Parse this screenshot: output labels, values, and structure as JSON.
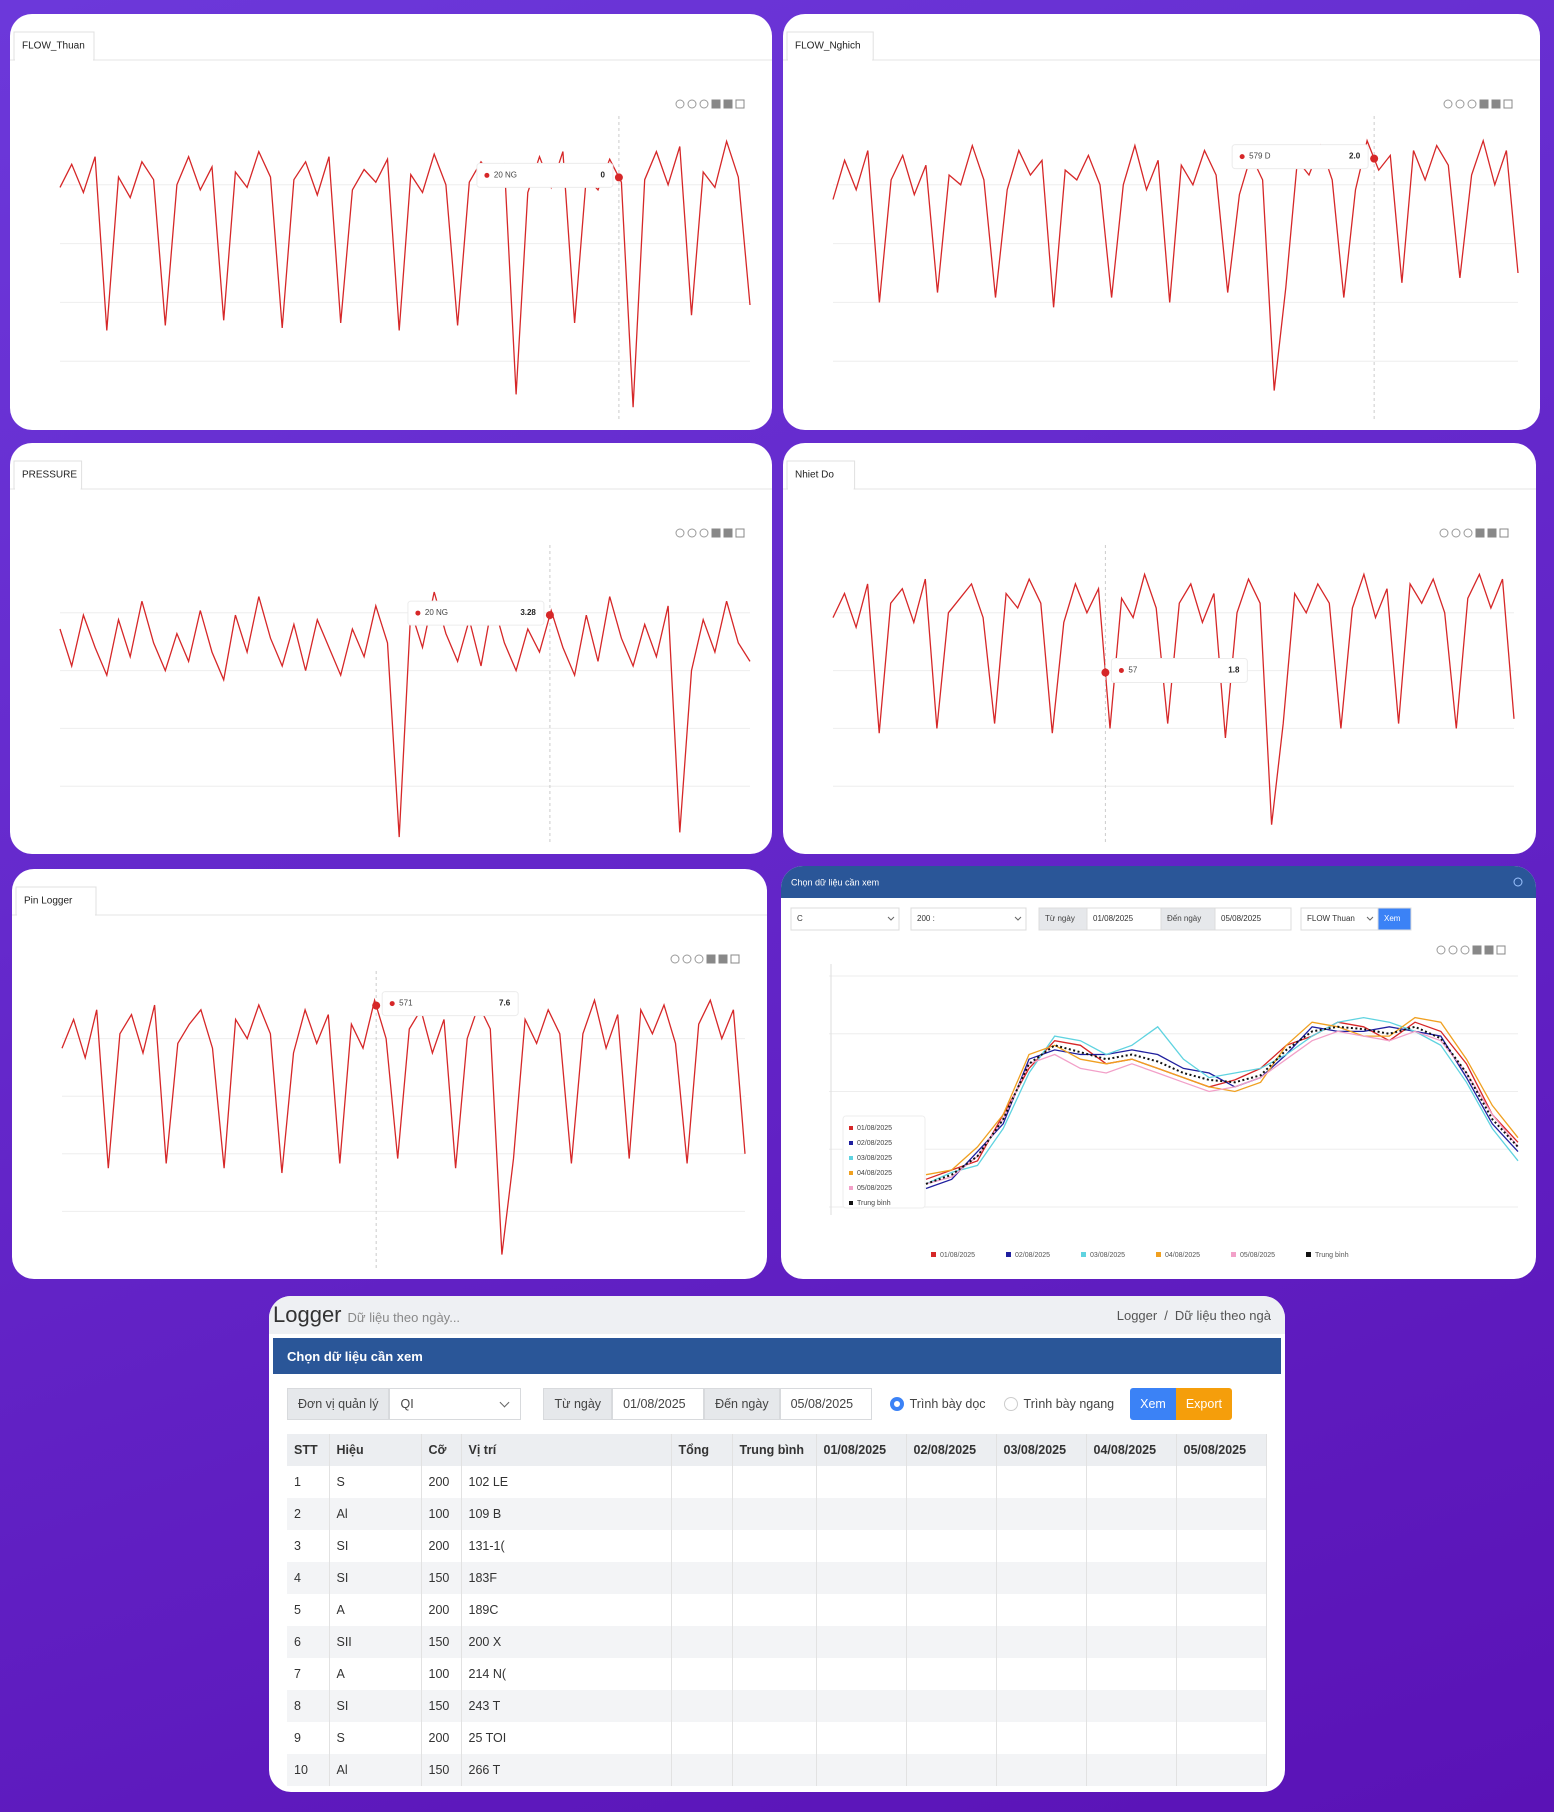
{
  "chart_data": [
    {
      "type": "line",
      "title": "FLOW_Thuan",
      "color": "#d62728",
      "ylim": [
        -15,
        100
      ],
      "tooltip": {
        "label": "20 NG",
        "text": "0"
      },
      "values": [
        76,
        85,
        74,
        88,
        20,
        80,
        72,
        86,
        79,
        22,
        77,
        88,
        75,
        84,
        24,
        82,
        76,
        90,
        80,
        21,
        79,
        86,
        73,
        88,
        23,
        75,
        83,
        78,
        87,
        20,
        81,
        74,
        89,
        77,
        22,
        78,
        86,
        80,
        85,
        -5,
        74,
        88,
        76,
        90,
        23,
        80,
        75,
        87,
        78,
        -10,
        79,
        90,
        77,
        92,
        26,
        82,
        76,
        94,
        80,
        30
      ]
    },
    {
      "type": "line",
      "title": "FLOW_Nghich",
      "color": "#d62728",
      "ylim": [
        -20,
        100
      ],
      "tooltip": {
        "label": "579 D",
        "text": "2.0"
      },
      "values": [
        70,
        86,
        74,
        90,
        28,
        78,
        88,
        72,
        84,
        32,
        80,
        76,
        92,
        78,
        30,
        74,
        90,
        80,
        86,
        26,
        82,
        78,
        88,
        76,
        30,
        76,
        92,
        74,
        86,
        28,
        84,
        76,
        90,
        80,
        32,
        72,
        88,
        78,
        -8,
        34,
        86,
        80,
        92,
        78,
        30,
        74,
        94,
        82,
        88,
        36,
        90,
        78,
        92,
        84,
        38,
        80,
        94,
        76,
        90,
        40
      ]
    },
    {
      "type": "line",
      "title": "PRESSURE",
      "color": "#d62728",
      "ylim": [
        -25,
        100
      ],
      "tooltip": {
        "label": "20 NG",
        "text": "3.28"
      },
      "values": [
        68,
        52,
        74,
        60,
        48,
        72,
        56,
        80,
        62,
        50,
        66,
        54,
        76,
        58,
        46,
        74,
        58,
        82,
        64,
        52,
        70,
        50,
        72,
        60,
        48,
        68,
        56,
        78,
        62,
        -22,
        76,
        60,
        84,
        66,
        54,
        72,
        52,
        80,
        62,
        50,
        68,
        58,
        76,
        60,
        48,
        74,
        54,
        82,
        64,
        52,
        70,
        56,
        78,
        -20,
        50,
        72,
        58,
        80,
        62,
        54
      ]
    },
    {
      "type": "line",
      "title": "Nhiet Do",
      "color": "#d62728",
      "ylim": [
        -20,
        100
      ],
      "tooltip": {
        "label": "57",
        "text": "1.8"
      },
      "values": [
        74,
        84,
        70,
        88,
        26,
        80,
        86,
        72,
        90,
        28,
        76,
        82,
        88,
        74,
        30,
        84,
        78,
        90,
        80,
        26,
        72,
        88,
        76,
        86,
        28,
        82,
        74,
        92,
        78,
        30,
        80,
        88,
        72,
        84,
        24,
        76,
        90,
        80,
        -12,
        30,
        84,
        76,
        88,
        80,
        28,
        78,
        92,
        74,
        86,
        30,
        88,
        80,
        90,
        76,
        28,
        82,
        92,
        78,
        90,
        32
      ]
    },
    {
      "type": "line",
      "title": "Pin Logger",
      "color": "#d62728",
      "ylim": [
        -20,
        100
      ],
      "tooltip": {
        "label": "571",
        "text": "7.6"
      },
      "values": [
        72,
        84,
        68,
        88,
        22,
        78,
        86,
        70,
        90,
        24,
        74,
        82,
        88,
        72,
        22,
        84,
        76,
        90,
        78,
        20,
        70,
        88,
        74,
        86,
        24,
        82,
        72,
        92,
        76,
        26,
        80,
        88,
        70,
        84,
        22,
        76,
        90,
        80,
        -14,
        26,
        84,
        74,
        88,
        78,
        24,
        78,
        92,
        72,
        86,
        26,
        88,
        78,
        90,
        74,
        24,
        82,
        92,
        76,
        88,
        28
      ]
    },
    {
      "type": "line",
      "title": "Chọn dữ liệu cần xem",
      "ylim": [
        0,
        100
      ],
      "controls": {
        "unit": "C",
        "size": "200 :",
        "from_label": "Từ ngày",
        "from": "01/08/2025",
        "to_label": "Đến ngày",
        "to": "05/08/2025",
        "metric": "FLOW Thuan",
        "button": "Xem"
      },
      "series": [
        {
          "name": "01/08/2025",
          "color": "#d62728",
          "values": [
            12,
            16,
            20,
            40,
            60,
            72,
            70,
            62,
            64,
            60,
            56,
            52,
            55,
            60,
            70,
            74,
            80,
            78,
            72,
            80,
            76,
            62,
            40,
            28
          ]
        },
        {
          "name": "02/08/2025",
          "color": "#1f1f9e",
          "values": [
            8,
            12,
            24,
            36,
            64,
            68,
            66,
            66,
            68,
            66,
            60,
            58,
            52,
            56,
            66,
            78,
            76,
            76,
            78,
            76,
            74,
            56,
            36,
            24
          ]
        },
        {
          "name": "03/08/2025",
          "color": "#5fd3e0",
          "values": [
            10,
            15,
            18,
            34,
            58,
            74,
            72,
            66,
            70,
            78,
            64,
            56,
            58,
            60,
            66,
            74,
            80,
            82,
            80,
            76,
            70,
            54,
            34,
            20
          ]
        },
        {
          "name": "04/08/2025",
          "color": "#f0a020",
          "values": [
            14,
            16,
            26,
            40,
            66,
            70,
            64,
            62,
            64,
            60,
            56,
            52,
            50,
            54,
            70,
            80,
            78,
            74,
            74,
            82,
            80,
            64,
            44,
            30
          ]
        },
        {
          "name": "05/08/2025",
          "color": "#f2a0c8",
          "values": [
            10,
            13,
            22,
            38,
            62,
            66,
            60,
            58,
            62,
            58,
            54,
            50,
            52,
            56,
            64,
            72,
            76,
            74,
            72,
            76,
            72,
            58,
            40,
            26
          ]
        },
        {
          "name": "Trung bình",
          "color": "#111111",
          "style": "dotted",
          "values": [
            10,
            14,
            22,
            38,
            62,
            70,
            67,
            64,
            66,
            63,
            58,
            55,
            54,
            57,
            68,
            76,
            78,
            77,
            75,
            78,
            73,
            58,
            38,
            26
          ]
        }
      ]
    }
  ],
  "table_panel": {
    "title": "Logger",
    "subtitle": "Dữ liệu theo ngày...",
    "breadcrumb": [
      "Logger",
      "Dữ liệu theo ngà"
    ],
    "breadcrumb_separator": "/",
    "header": "Chọn dữ liệu cần xem",
    "controls": {
      "unit_label": "Đơn vị quản lý",
      "unit": "QI",
      "from_label": "Từ ngày",
      "from": "01/08/2025",
      "to_label": "Đến ngày",
      "to": "05/08/2025",
      "radio_vertical": "Trình bày dọc",
      "radio_horizontal": "Trình bày ngang",
      "view": "Xem",
      "export": "Export"
    },
    "columns": [
      "STT",
      "Hiệu",
      "Cỡ",
      "Vị trí",
      "Tổng",
      "Trung bình",
      "01/08/2025",
      "02/08/2025",
      "03/08/2025",
      "04/08/2025",
      "05/08/2025"
    ],
    "rows": [
      [
        1,
        "S",
        200,
        "102 LE"
      ],
      [
        2,
        "Al",
        100,
        "109 B"
      ],
      [
        3,
        "SI",
        200,
        "131-1("
      ],
      [
        4,
        "SI",
        150,
        "183F"
      ],
      [
        5,
        "A",
        200,
        "189C"
      ],
      [
        6,
        "SII",
        150,
        "200 X"
      ],
      [
        7,
        "A",
        100,
        "214 N("
      ],
      [
        8,
        "SI",
        150,
        "243 T"
      ],
      [
        9,
        "S",
        200,
        "25 TOI"
      ],
      [
        10,
        "Al",
        150,
        "266 T"
      ]
    ]
  }
}
